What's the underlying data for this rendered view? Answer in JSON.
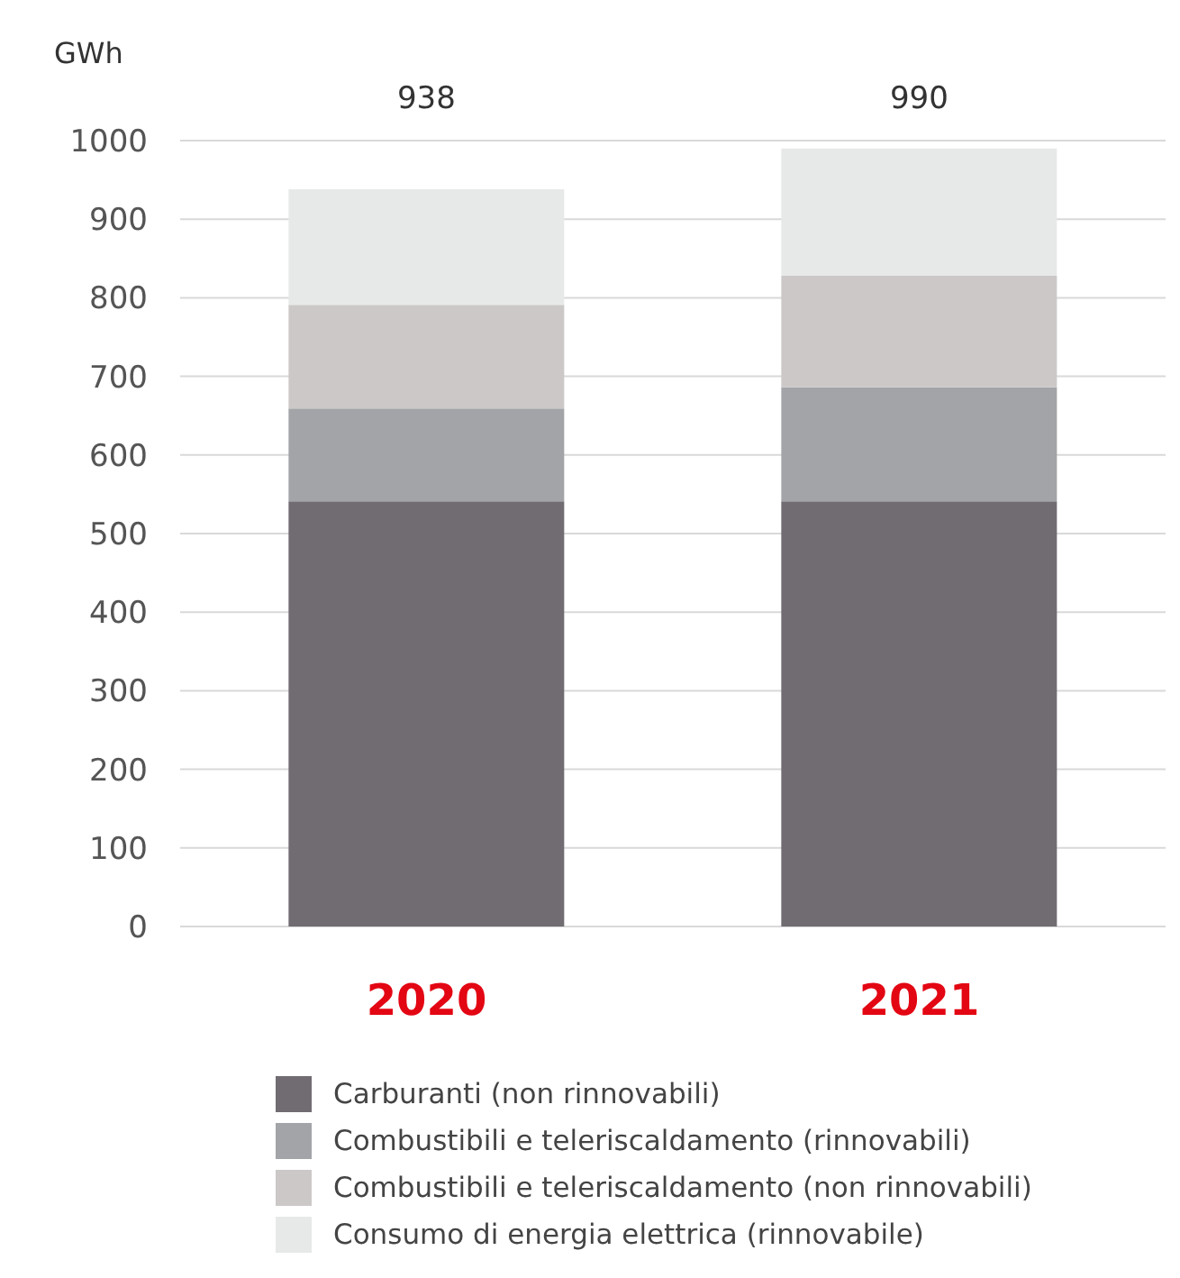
{
  "chart_data": {
    "type": "bar",
    "stacked": true,
    "ylabel": "GWh",
    "categories": [
      "2020",
      "2021"
    ],
    "series": [
      {
        "name": "Carburanti (non rinnovabili)",
        "color": "#716c72",
        "values": [
          541,
          541
        ]
      },
      {
        "name": "Combustibili e teleriscaldamento (rinnovabili)",
        "color": "#a3a4a8",
        "values": [
          118,
          145
        ]
      },
      {
        "name": "Combustibili e teleriscaldamento (non rinnovabili)",
        "color": "#ccc8c8",
        "values": [
          132,
          142
        ]
      },
      {
        "name": "Consumo di energia elettrica (rinnovabile)",
        "color": "#e7e9e8",
        "values": [
          147,
          162
        ]
      }
    ],
    "totals": [
      "938",
      "990"
    ],
    "ylim": [
      0,
      1000
    ],
    "yticks": [
      0,
      100,
      200,
      300,
      400,
      500,
      600,
      700,
      800,
      900,
      1000
    ],
    "grid": "y",
    "legend": "bottom"
  }
}
